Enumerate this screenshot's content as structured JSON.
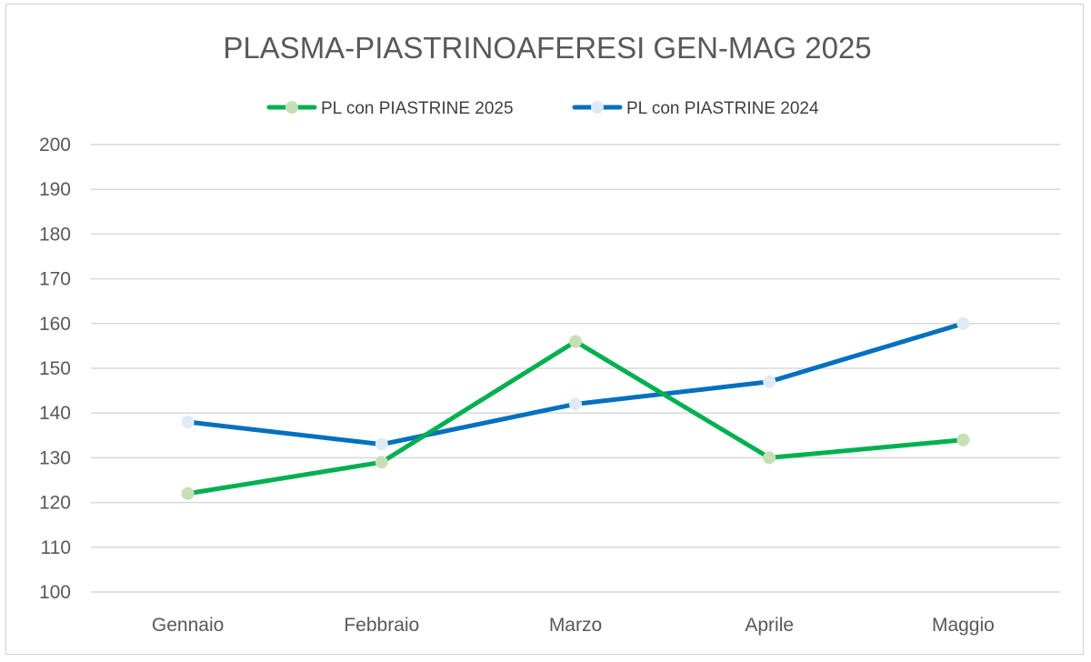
{
  "chart_data": {
    "type": "line",
    "title": "PLASMA-PIASTRINOAFERESI GEN-MAG 2025",
    "categories": [
      "Gennaio",
      "Febbraio",
      "Marzo",
      "Aprile",
      "Maggio"
    ],
    "series": [
      {
        "name": "PL con PIASTRINE 2025",
        "values": [
          122,
          129,
          156,
          130,
          134
        ],
        "line_color": "#00b050",
        "marker_color": "#c5e0b4"
      },
      {
        "name": "PL con PIASTRINE 2024",
        "values": [
          138,
          133,
          142,
          147,
          160
        ],
        "line_color": "#0070c0",
        "marker_color": "#deebf7"
      }
    ],
    "ylim": [
      100,
      200
    ],
    "yticks": [
      "100",
      "110",
      "120",
      "130",
      "140",
      "150",
      "160",
      "170",
      "180",
      "190",
      "200"
    ],
    "grid": true,
    "legend_position": "top"
  }
}
